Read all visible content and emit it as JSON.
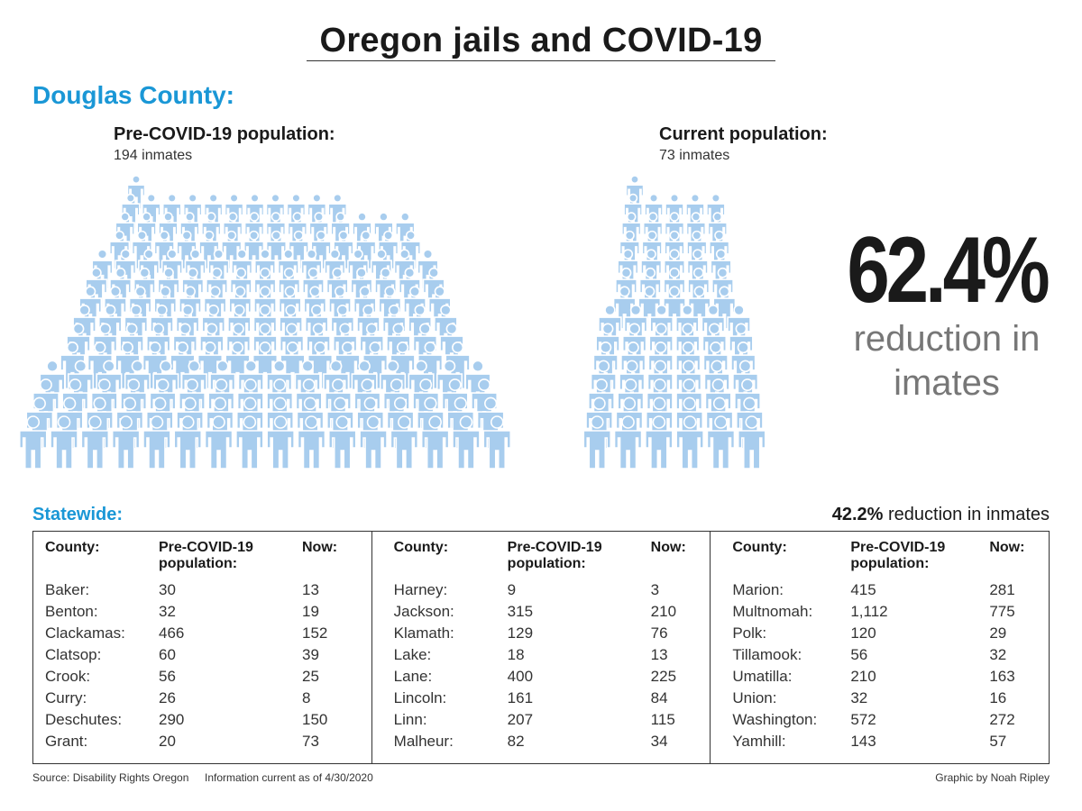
{
  "title": "Oregon jails and COVID-19",
  "county": "Douglas County:",
  "pre": {
    "label": "Pre-COVID-19 population:",
    "count": "194 inmates"
  },
  "current": {
    "label": "Current population:",
    "count": "73 inmates"
  },
  "big_stat": {
    "value": "62.4%",
    "caption_line1": "reduction in",
    "caption_line2": "imates"
  },
  "statewide": {
    "label": "Statewide:",
    "pct": "42.2%",
    "pct_text": " reduction in inmates"
  },
  "table": {
    "headers": {
      "county": "County:",
      "pre_line1": "Pre-COVID-19",
      "pre_line2": "population:",
      "now": "Now:"
    },
    "columns": [
      [
        {
          "county": "Baker:",
          "pre": "30",
          "now": "13"
        },
        {
          "county": "Benton:",
          "pre": "32",
          "now": "19"
        },
        {
          "county": "Clackamas:",
          "pre": "466",
          "now": "152"
        },
        {
          "county": "Clatsop:",
          "pre": "60",
          "now": "39"
        },
        {
          "county": "Crook:",
          "pre": "56",
          "now": "25"
        },
        {
          "county": "Curry:",
          "pre": "26",
          "now": "8"
        },
        {
          "county": "Deschutes:",
          "pre": "290",
          "now": "150"
        },
        {
          "county": "Grant:",
          "pre": "20",
          "now": "73"
        }
      ],
      [
        {
          "county": "Harney:",
          "pre": "9",
          "now": "3"
        },
        {
          "county": "Jackson:",
          "pre": "315",
          "now": "210"
        },
        {
          "county": "Klamath:",
          "pre": "129",
          "now": "76"
        },
        {
          "county": "Lake:",
          "pre": "18",
          "now": "13"
        },
        {
          "county": "Lane:",
          "pre": "400",
          "now": "225"
        },
        {
          "county": "Lincoln:",
          "pre": "161",
          "now": "84"
        },
        {
          "county": "Linn:",
          "pre": "207",
          "now": "115"
        },
        {
          "county": "Malheur:",
          "pre": "82",
          "now": "34"
        }
      ],
      [
        {
          "county": "Marion:",
          "pre": "415",
          "now": "281"
        },
        {
          "county": "Multnomah:",
          "pre": "1,112",
          "now": "775"
        },
        {
          "county": "Polk:",
          "pre": "120",
          "now": "29"
        },
        {
          "county": "Tillamook:",
          "pre": "56",
          "now": "32"
        },
        {
          "county": "Umatilla:",
          "pre": "210",
          "now": "163"
        },
        {
          "county": "Union:",
          "pre": "32",
          "now": "16"
        },
        {
          "county": "Washington:",
          "pre": "572",
          "now": "272"
        },
        {
          "county": "Yamhill:",
          "pre": "143",
          "now": "57"
        }
      ]
    ]
  },
  "footer": {
    "source": "Source: Disability Rights Oregon",
    "info": "Information current as of 4/30/2020",
    "credit": "Graphic by Noah Ripley"
  },
  "chart_data": {
    "type": "pictogram",
    "icon": "person-icon",
    "unit": "inmates",
    "categories": [
      "Pre-COVID-19 population:",
      "Current population:"
    ],
    "values": [
      194,
      73
    ],
    "reduction_pct": 62.4,
    "color": "#a8cdee"
  }
}
